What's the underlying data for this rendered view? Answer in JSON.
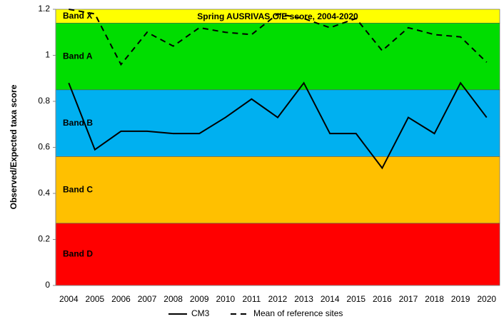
{
  "chart_data": {
    "type": "line",
    "title": "Spring AUSRIVAS O/E score, 2004-2020",
    "y_label": "Observed/Expected taxa score",
    "categories": [
      "2004",
      "2005",
      "2006",
      "2007",
      "2008",
      "2009",
      "2010",
      "2011",
      "2012",
      "2013",
      "2014",
      "2015",
      "2016",
      "2017",
      "2018",
      "2019",
      "2020"
    ],
    "series": [
      {
        "name": "CM3",
        "color": "#000000",
        "line_style": "solid",
        "values": [
          0.88,
          0.59,
          0.67,
          0.67,
          0.66,
          0.66,
          0.73,
          0.81,
          0.73,
          0.88,
          0.66,
          0.66,
          0.51,
          0.73,
          0.66,
          0.88,
          0.73
        ]
      },
      {
        "name": "Mean of reference sites",
        "color": "#000000",
        "line_style": "dashed",
        "values": [
          1.2,
          1.18,
          0.96,
          1.1,
          1.04,
          1.12,
          1.1,
          1.09,
          1.18,
          1.16,
          1.12,
          1.16,
          1.02,
          1.12,
          1.09,
          1.08,
          0.97
        ]
      }
    ],
    "bands": [
      {
        "name": "Band X",
        "from": 1.14,
        "to": 1.2,
        "color": "#ffff00"
      },
      {
        "name": "Band A",
        "from": 0.85,
        "to": 1.14,
        "color": "#00dd00"
      },
      {
        "name": "Band B",
        "from": 0.56,
        "to": 0.85,
        "color": "#00b0f0"
      },
      {
        "name": "Band C",
        "from": 0.27,
        "to": 0.56,
        "color": "#ffc000"
      },
      {
        "name": "Band D",
        "from": 0,
        "to": 0.27,
        "color": "#ff0000"
      }
    ],
    "ylim": [
      0,
      1.2
    ],
    "yticks": [
      0,
      0.2,
      0.4,
      0.6,
      0.8,
      1,
      1.2
    ],
    "legend": "bottom"
  }
}
